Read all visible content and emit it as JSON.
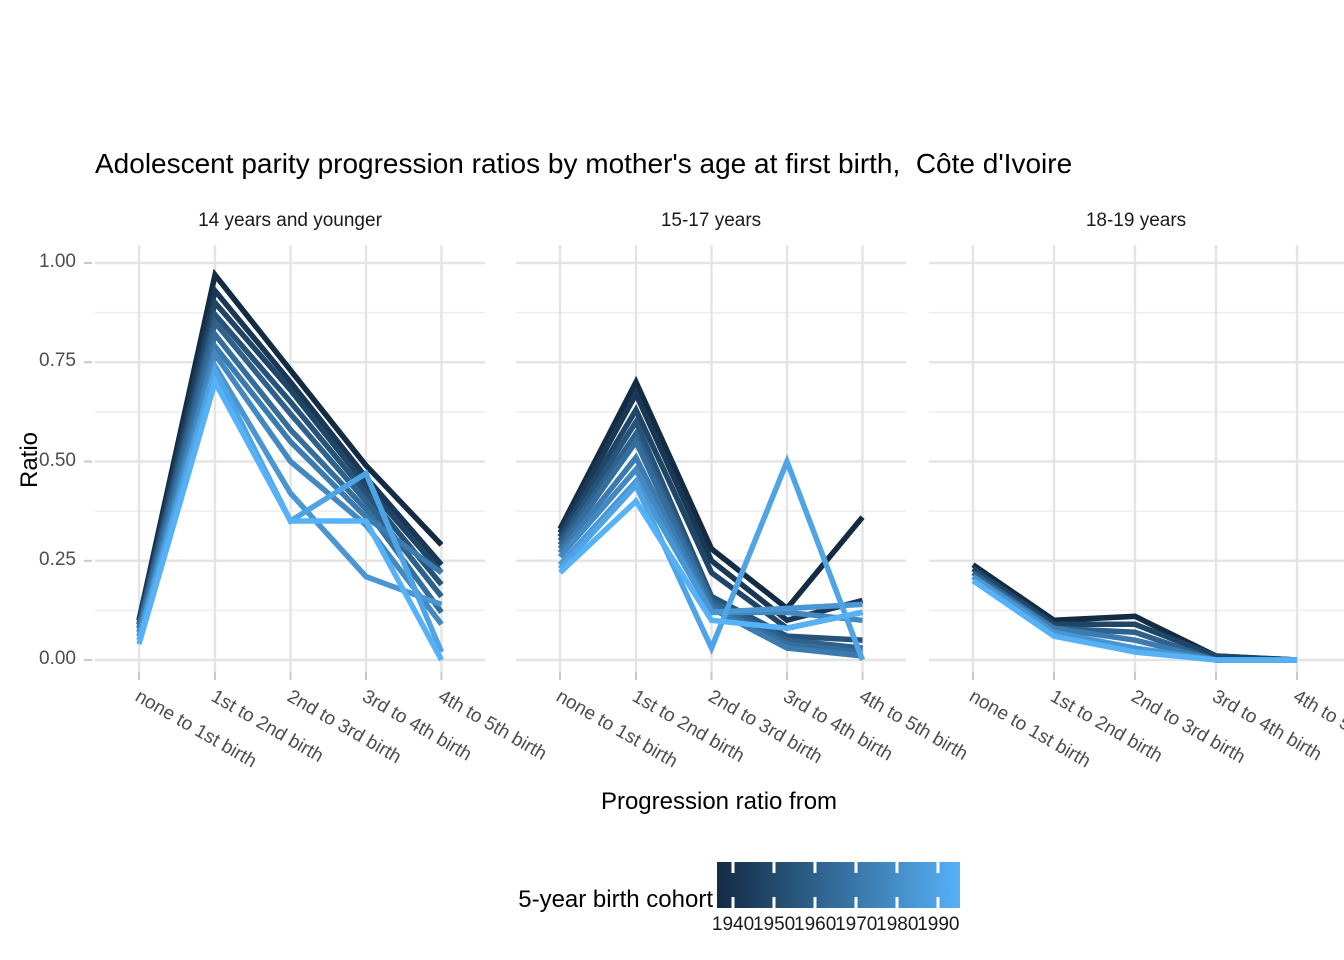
{
  "title": "Adolescent parity progression ratios by mother's age at first birth,  Côte d'Ivoire",
  "chart_data": {
    "type": "line",
    "categories": [
      "none to 1st birth",
      "1st to 2nd birth",
      "2nd to 3rd birth",
      "3rd to 4th birth",
      "4th to 5th birth"
    ],
    "xlabel": "Progression ratio from",
    "ylabel": "Ratio",
    "ylim": [
      0,
      1
    ],
    "y_ticks": [
      0,
      0.25,
      0.5,
      0.75,
      1
    ],
    "y_tick_labels": [
      "0.00",
      "0.25",
      "0.50",
      "0.75",
      "1.00"
    ],
    "grid": true,
    "facets": [
      {
        "label": "14 years and younger",
        "series": [
          {
            "cohort": 1940,
            "values": [
              0.1,
              0.97,
              0.73,
              0.49,
              0.29
            ]
          },
          {
            "cohort": 1945,
            "values": [
              0.1,
              0.93,
              0.7,
              0.46,
              0.24
            ]
          },
          {
            "cohort": 1950,
            "values": [
              0.09,
              0.9,
              0.68,
              0.44,
              0.22
            ]
          },
          {
            "cohort": 1955,
            "values": [
              0.09,
              0.87,
              0.65,
              0.42,
              0.19
            ]
          },
          {
            "cohort": 1960,
            "values": [
              0.08,
              0.85,
              0.62,
              0.4,
              0.16
            ]
          },
          {
            "cohort": 1965,
            "values": [
              0.08,
              0.82,
              0.58,
              0.38,
              0.12
            ]
          },
          {
            "cohort": 1970,
            "values": [
              0.07,
              0.79,
              0.55,
              0.36,
              0.22
            ]
          },
          {
            "cohort": 1975,
            "values": [
              0.06,
              0.77,
              0.5,
              0.34,
              0.09
            ]
          },
          {
            "cohort": 1980,
            "values": [
              0.06,
              0.74,
              0.42,
              0.21,
              0.14
            ]
          },
          {
            "cohort": 1985,
            "values": [
              0.05,
              0.73,
              0.35,
              0.47,
              0.02
            ]
          },
          {
            "cohort": 1990,
            "values": [
              0.04,
              0.7,
              0.35,
              0.35,
              0.0
            ]
          }
        ]
      },
      {
        "label": "15-17 years",
        "series": [
          {
            "cohort": 1940,
            "values": [
              0.33,
              0.7,
              0.28,
              0.13,
              0.36
            ]
          },
          {
            "cohort": 1945,
            "values": [
              0.32,
              0.67,
              0.25,
              0.1,
              0.15
            ]
          },
          {
            "cohort": 1950,
            "values": [
              0.31,
              0.63,
              0.22,
              0.08,
              0.12
            ]
          },
          {
            "cohort": 1955,
            "values": [
              0.3,
              0.6,
              0.16,
              0.06,
              0.05
            ]
          },
          {
            "cohort": 1960,
            "values": [
              0.29,
              0.57,
              0.15,
              0.05,
              0.03
            ]
          },
          {
            "cohort": 1965,
            "values": [
              0.28,
              0.55,
              0.14,
              0.04,
              0.02
            ]
          },
          {
            "cohort": 1970,
            "values": [
              0.27,
              0.51,
              0.13,
              0.03,
              0.01
            ]
          },
          {
            "cohort": 1975,
            "values": [
              0.26,
              0.48,
              0.12,
              0.12,
              0.1
            ]
          },
          {
            "cohort": 1980,
            "values": [
              0.24,
              0.45,
              0.12,
              0.13,
              0.14
            ]
          },
          {
            "cohort": 1985,
            "values": [
              0.23,
              0.44,
              0.03,
              0.5,
              0.0
            ]
          },
          {
            "cohort": 1990,
            "values": [
              0.22,
              0.4,
              0.1,
              0.08,
              0.12
            ]
          }
        ]
      },
      {
        "label": "18-19 years",
        "series": [
          {
            "cohort": 1940,
            "values": [
              0.24,
              0.1,
              0.11,
              0.01,
              0.0
            ]
          },
          {
            "cohort": 1950,
            "values": [
              0.23,
              0.09,
              0.09,
              0.01,
              0.0
            ]
          },
          {
            "cohort": 1960,
            "values": [
              0.22,
              0.08,
              0.07,
              0.0,
              0.0
            ]
          },
          {
            "cohort": 1970,
            "values": [
              0.21,
              0.08,
              0.05,
              0.0,
              0.0
            ]
          },
          {
            "cohort": 1980,
            "values": [
              0.21,
              0.07,
              0.03,
              0.0,
              0.0
            ]
          },
          {
            "cohort": 1990,
            "values": [
              0.2,
              0.06,
              0.02,
              0.0,
              0.0
            ]
          }
        ]
      }
    ],
    "legend": {
      "title": "5-year birth cohort",
      "position": "bottom",
      "type": "colorbar",
      "ticks": [
        "1940",
        "1950",
        "1960",
        "1970",
        "1980",
        "1990"
      ]
    },
    "color_scale": {
      "low": "#132B43",
      "high": "#56B1F7",
      "low_value": 1940,
      "high_value": 1990
    },
    "grid_color": "#e4e4e4",
    "grid_minor_color": "#ededed",
    "tick_mark_color": "#c8c8c8"
  }
}
